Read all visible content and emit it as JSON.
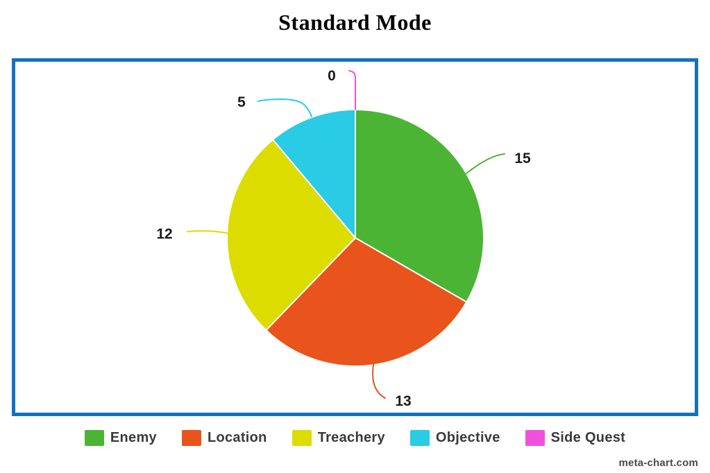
{
  "page": {
    "title": "Standard Mode",
    "watermark": "meta-chart.com"
  },
  "colors": {
    "frame_border": "#1372be",
    "legend_text": "#3a3a3a",
    "value_label_text": "#1a1a1a",
    "background": "#ffffff"
  },
  "chart_data": {
    "type": "pie",
    "title": "Standard Mode",
    "categories": [
      "Enemy",
      "Location",
      "Treachery",
      "Objective",
      "Side Quest"
    ],
    "values": [
      15,
      13,
      12,
      5,
      0
    ],
    "colors": [
      "#4cb434",
      "#e8541c",
      "#dcdc00",
      "#29cbe5",
      "#ee52dc"
    ],
    "total": 45,
    "start_angle_deg": 0,
    "direction": "clockwise",
    "slice_gap_stroke": "#ffffff",
    "data_labels": "values shown outside slices with colored leader lines",
    "legend_position": "bottom"
  }
}
